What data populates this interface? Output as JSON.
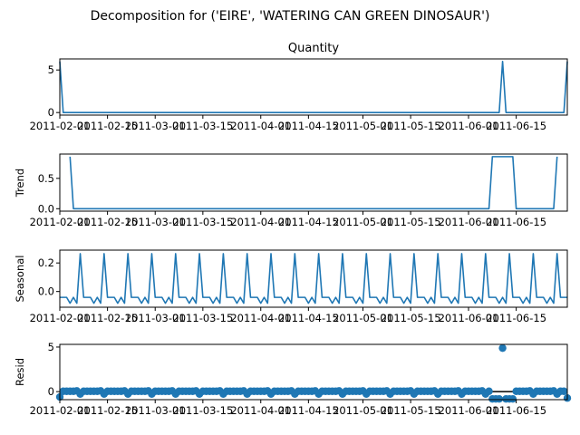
{
  "chart_data": {
    "type": "line",
    "title": "Decomposition for ('EIRE', 'WATERING CAN GREEN DINOSAUR')",
    "x_start": "2011-02-01",
    "x_end": "2011-06-30",
    "x_ticks": [
      "2011-02-01",
      "2011-02-15",
      "2011-03-01",
      "2011-03-15",
      "2011-04-01",
      "2011-04-15",
      "2011-05-01",
      "2011-05-15",
      "2011-06-01",
      "2011-06-15"
    ],
    "x_tick_labels": [
      "2011-02-01",
      "2011-02-15",
      "2011-03-01",
      "2011-03-15",
      "2011-04-01",
      "2011-04-15",
      "2011-05-01",
      "2011-05-15",
      "2011-06-01",
      "2011-06-15"
    ],
    "color": "#1f77b4",
    "panels": [
      {
        "key": "observed",
        "title": "Quantity",
        "ylabel": "",
        "ylim": [
          -0.3,
          6.3
        ],
        "yticks": [
          0,
          5
        ],
        "style": "line",
        "points": [
          [
            "2011-02-01",
            6
          ],
          [
            "2011-02-02",
            0
          ],
          [
            "2011-06-10",
            0
          ],
          [
            "2011-06-11",
            6
          ],
          [
            "2011-06-12",
            0
          ],
          [
            "2011-06-29",
            0
          ],
          [
            "2011-06-30",
            6
          ]
        ]
      },
      {
        "key": "trend",
        "title": "",
        "ylabel": "Trend",
        "ylim": [
          -0.04,
          0.9
        ],
        "yticks": [
          0.0,
          0.5
        ],
        "style": "line",
        "points": [
          [
            "2011-02-04",
            0.857
          ],
          [
            "2011-02-05",
            0
          ],
          [
            "2011-06-07",
            0
          ],
          [
            "2011-06-08",
            0.857
          ],
          [
            "2011-06-14",
            0.857
          ],
          [
            "2011-06-15",
            0
          ],
          [
            "2011-06-26",
            0
          ],
          [
            "2011-06-27",
            0.857
          ]
        ]
      },
      {
        "key": "seasonal",
        "title": "",
        "ylabel": "Seasonal",
        "ylim": [
          -0.11,
          0.29
        ],
        "yticks": [
          0.0,
          0.2
        ],
        "style": "line",
        "period": 7,
        "pattern": [
          -0.041,
          -0.041,
          -0.041,
          -0.082,
          -0.041,
          -0.082,
          0.265
        ]
      },
      {
        "key": "resid",
        "title": "",
        "ylabel": "Resid",
        "ylim": [
          -0.9,
          5.3
        ],
        "yticks": [
          0,
          5
        ],
        "style": "scatter",
        "baseline": 0,
        "points": [
          [
            "2011-02-01",
            -0.6
          ],
          [
            "2011-02-02",
            0.04
          ],
          [
            "2011-02-03",
            0.04
          ],
          [
            "2011-02-04",
            0.04
          ],
          [
            "2011-02-05",
            0.04
          ],
          [
            "2011-02-06",
            0.08
          ],
          [
            "2011-02-07",
            -0.27
          ],
          [
            "2011-02-08",
            0.04
          ],
          [
            "2011-02-09",
            0.04
          ],
          [
            "2011-02-10",
            0.04
          ],
          [
            "2011-02-11",
            0.04
          ],
          [
            "2011-02-12",
            0.04
          ],
          [
            "2011-02-13",
            0.08
          ],
          [
            "2011-02-14",
            -0.27
          ],
          [
            "2011-02-15",
            0.04
          ],
          [
            "2011-02-16",
            0.04
          ],
          [
            "2011-02-17",
            0.04
          ],
          [
            "2011-02-18",
            0.04
          ],
          [
            "2011-02-19",
            0.04
          ],
          [
            "2011-02-20",
            0.08
          ],
          [
            "2011-02-21",
            -0.27
          ],
          [
            "2011-02-22",
            0.04
          ],
          [
            "2011-02-23",
            0.04
          ],
          [
            "2011-02-24",
            0.04
          ],
          [
            "2011-02-25",
            0.04
          ],
          [
            "2011-02-26",
            0.04
          ],
          [
            "2011-02-27",
            0.08
          ],
          [
            "2011-02-28",
            -0.27
          ],
          [
            "2011-03-01",
            0.04
          ],
          [
            "2011-03-02",
            0.04
          ],
          [
            "2011-03-03",
            0.04
          ],
          [
            "2011-03-04",
            0.04
          ],
          [
            "2011-03-05",
            0.04
          ],
          [
            "2011-03-06",
            0.08
          ],
          [
            "2011-03-07",
            -0.27
          ],
          [
            "2011-03-08",
            0.04
          ],
          [
            "2011-03-09",
            0.04
          ],
          [
            "2011-03-10",
            0.04
          ],
          [
            "2011-03-11",
            0.04
          ],
          [
            "2011-03-12",
            0.04
          ],
          [
            "2011-03-13",
            0.08
          ],
          [
            "2011-03-14",
            -0.27
          ],
          [
            "2011-03-15",
            0.04
          ],
          [
            "2011-03-16",
            0.04
          ],
          [
            "2011-03-17",
            0.04
          ],
          [
            "2011-03-18",
            0.04
          ],
          [
            "2011-03-19",
            0.04
          ],
          [
            "2011-03-20",
            0.08
          ],
          [
            "2011-03-21",
            -0.27
          ],
          [
            "2011-03-22",
            0.04
          ],
          [
            "2011-03-23",
            0.04
          ],
          [
            "2011-03-24",
            0.04
          ],
          [
            "2011-03-25",
            0.04
          ],
          [
            "2011-03-26",
            0.04
          ],
          [
            "2011-03-27",
            0.08
          ],
          [
            "2011-03-28",
            -0.27
          ],
          [
            "2011-03-29",
            0.04
          ],
          [
            "2011-03-30",
            0.04
          ],
          [
            "2011-03-31",
            0.04
          ],
          [
            "2011-04-01",
            0.04
          ],
          [
            "2011-04-02",
            0.04
          ],
          [
            "2011-04-03",
            0.08
          ],
          [
            "2011-04-04",
            -0.27
          ],
          [
            "2011-04-05",
            0.04
          ],
          [
            "2011-04-06",
            0.04
          ],
          [
            "2011-04-07",
            0.04
          ],
          [
            "2011-04-08",
            0.04
          ],
          [
            "2011-04-09",
            0.04
          ],
          [
            "2011-04-10",
            0.08
          ],
          [
            "2011-04-11",
            -0.27
          ],
          [
            "2011-04-12",
            0.04
          ],
          [
            "2011-04-13",
            0.04
          ],
          [
            "2011-04-14",
            0.04
          ],
          [
            "2011-04-15",
            0.04
          ],
          [
            "2011-04-16",
            0.04
          ],
          [
            "2011-04-17",
            0.08
          ],
          [
            "2011-04-18",
            -0.27
          ],
          [
            "2011-04-19",
            0.04
          ],
          [
            "2011-04-20",
            0.04
          ],
          [
            "2011-04-21",
            0.04
          ],
          [
            "2011-04-22",
            0.04
          ],
          [
            "2011-04-23",
            0.04
          ],
          [
            "2011-04-24",
            0.08
          ],
          [
            "2011-04-25",
            -0.27
          ],
          [
            "2011-04-26",
            0.04
          ],
          [
            "2011-04-27",
            0.04
          ],
          [
            "2011-04-28",
            0.04
          ],
          [
            "2011-04-29",
            0.04
          ],
          [
            "2011-04-30",
            0.04
          ],
          [
            "2011-05-01",
            0.08
          ],
          [
            "2011-05-02",
            -0.27
          ],
          [
            "2011-05-03",
            0.04
          ],
          [
            "2011-05-04",
            0.04
          ],
          [
            "2011-05-05",
            0.04
          ],
          [
            "2011-05-06",
            0.04
          ],
          [
            "2011-05-07",
            0.04
          ],
          [
            "2011-05-08",
            0.08
          ],
          [
            "2011-05-09",
            -0.27
          ],
          [
            "2011-05-10",
            0.04
          ],
          [
            "2011-05-11",
            0.04
          ],
          [
            "2011-05-12",
            0.04
          ],
          [
            "2011-05-13",
            0.04
          ],
          [
            "2011-05-14",
            0.04
          ],
          [
            "2011-05-15",
            0.08
          ],
          [
            "2011-05-16",
            -0.27
          ],
          [
            "2011-05-17",
            0.04
          ],
          [
            "2011-05-18",
            0.04
          ],
          [
            "2011-05-19",
            0.04
          ],
          [
            "2011-05-20",
            0.04
          ],
          [
            "2011-05-21",
            0.04
          ],
          [
            "2011-05-22",
            0.08
          ],
          [
            "2011-05-23",
            -0.27
          ],
          [
            "2011-05-24",
            0.04
          ],
          [
            "2011-05-25",
            0.04
          ],
          [
            "2011-05-26",
            0.04
          ],
          [
            "2011-05-27",
            0.04
          ],
          [
            "2011-05-28",
            0.04
          ],
          [
            "2011-05-29",
            0.08
          ],
          [
            "2011-05-30",
            -0.27
          ],
          [
            "2011-05-31",
            0.04
          ],
          [
            "2011-06-01",
            0.04
          ],
          [
            "2011-06-02",
            0.04
          ],
          [
            "2011-06-03",
            0.04
          ],
          [
            "2011-06-04",
            0.04
          ],
          [
            "2011-06-05",
            0.08
          ],
          [
            "2011-06-06",
            -0.27
          ],
          [
            "2011-06-07",
            0.04
          ],
          [
            "2011-06-08",
            -0.82
          ],
          [
            "2011-06-09",
            -0.82
          ],
          [
            "2011-06-10",
            -0.82
          ],
          [
            "2011-06-11",
            4.88
          ],
          [
            "2011-06-12",
            -0.82
          ],
          [
            "2011-06-13",
            -0.82
          ],
          [
            "2011-06-14",
            -0.82
          ],
          [
            "2011-06-15",
            0.04
          ],
          [
            "2011-06-16",
            0.04
          ],
          [
            "2011-06-17",
            0.04
          ],
          [
            "2011-06-18",
            0.04
          ],
          [
            "2011-06-19",
            0.08
          ],
          [
            "2011-06-20",
            -0.27
          ],
          [
            "2011-06-21",
            0.04
          ],
          [
            "2011-06-22",
            0.04
          ],
          [
            "2011-06-23",
            0.04
          ],
          [
            "2011-06-24",
            0.04
          ],
          [
            "2011-06-25",
            0.04
          ],
          [
            "2011-06-26",
            0.08
          ],
          [
            "2011-06-27",
            -0.27
          ],
          [
            "2011-06-28",
            0.04
          ],
          [
            "2011-06-29",
            0.04
          ],
          [
            "2011-06-30",
            -0.72
          ]
        ]
      }
    ]
  }
}
